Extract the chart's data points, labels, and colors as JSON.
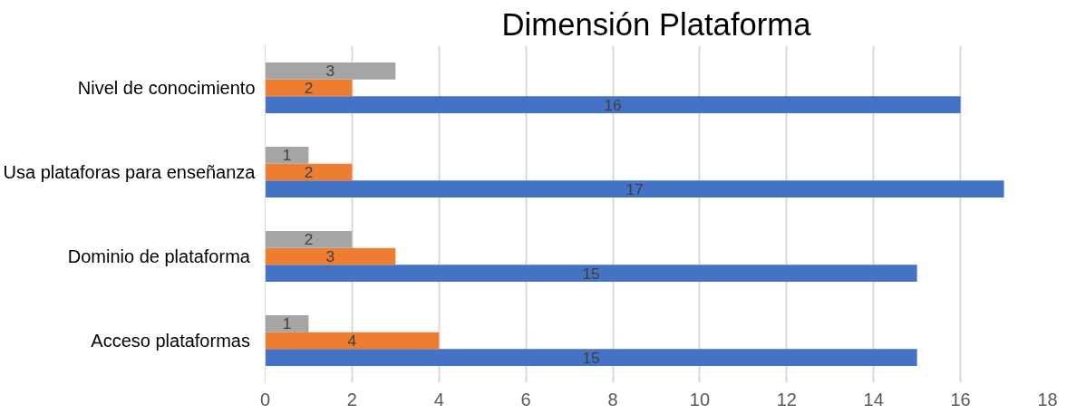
{
  "chart_data": {
    "type": "bar",
    "orientation": "horizontal",
    "title": "Dimensión Plataforma",
    "categories": [
      "Nivel de conocimiento",
      "Usa plataforas para enseñanza",
      "Dominio de  plataforma",
      "Acceso  plataformas"
    ],
    "series": [
      {
        "color": "#4472c4",
        "values": [
          16,
          17,
          15,
          15
        ]
      },
      {
        "color": "#ed7d31",
        "values": [
          2,
          2,
          3,
          4
        ]
      },
      {
        "color": "#a5a5a5",
        "values": [
          3,
          1,
          2,
          1
        ]
      }
    ],
    "xlim": [
      0,
      18
    ],
    "xticks": [
      0,
      2,
      4,
      6,
      8,
      10,
      12,
      14,
      16,
      18
    ],
    "grid": "x",
    "data_labels": true
  }
}
